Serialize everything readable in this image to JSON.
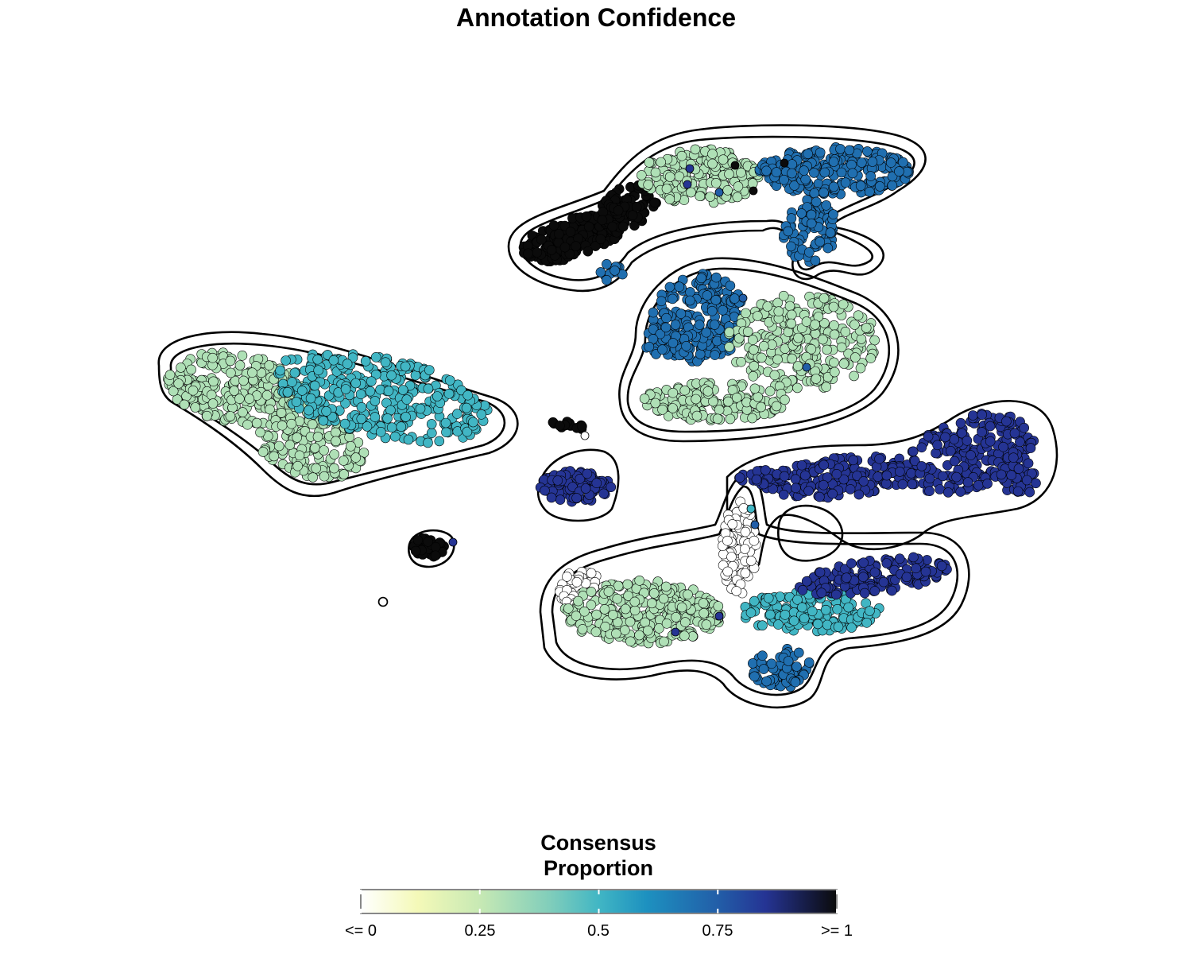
{
  "chart_data": {
    "type": "scatter",
    "title": "Annotation Confidence",
    "xlabel": "",
    "ylabel": "",
    "axes_visible": false,
    "grid": false,
    "legend": {
      "type": "colorbar",
      "title_lines": [
        "Consensus",
        "Proportion"
      ],
      "placement": "bottom",
      "range": [
        0,
        1
      ],
      "ticks": [
        0,
        0.25,
        0.5,
        0.75,
        1
      ],
      "tick_labels": [
        "<= 0",
        "0.25",
        "0.5",
        "0.75",
        ">= 1"
      ],
      "stops": [
        {
          "value": 0.0,
          "color": "#ffffff"
        },
        {
          "value": 0.12,
          "color": "#f4f9b8"
        },
        {
          "value": 0.25,
          "color": "#c7e9b4"
        },
        {
          "value": 0.4,
          "color": "#7fcdbb"
        },
        {
          "value": 0.5,
          "color": "#41b6c4"
        },
        {
          "value": 0.6,
          "color": "#1d91c0"
        },
        {
          "value": 0.75,
          "color": "#225ea8"
        },
        {
          "value": 0.85,
          "color": "#253494"
        },
        {
          "value": 1.0,
          "color": "#0b0b0b"
        }
      ]
    },
    "point_colors": {
      "near_zero": "#f2f2f2",
      "low": "#b1dfb8",
      "mid": "#41b6c4",
      "high": "#2372b3",
      "very_high": "#1b2a7d",
      "max": "#0b0b0b"
    },
    "clusters": [
      {
        "name": "top-cluster",
        "region_values": {
          "left": 1.0,
          "middle": 0.3,
          "right": 0.7
        }
      },
      {
        "name": "upper-middle-cluster",
        "region_values": {
          "left": 0.7,
          "right": 0.3
        }
      },
      {
        "name": "left-cluster",
        "region_values": {
          "left": 0.3,
          "right": 0.5
        }
      },
      {
        "name": "small-middle-cluster",
        "region_values": {
          "main": 0.85
        }
      },
      {
        "name": "tiny-cluster",
        "region_values": {
          "main": 1.0
        }
      },
      {
        "name": "right-upper-cluster",
        "region_values": {
          "main": 0.85
        }
      },
      {
        "name": "bottom-cluster",
        "region_values": {
          "bridge": 0.0,
          "left": 0.3,
          "center": 0.5,
          "right": 0.85,
          "bottom": 0.7
        }
      }
    ]
  }
}
